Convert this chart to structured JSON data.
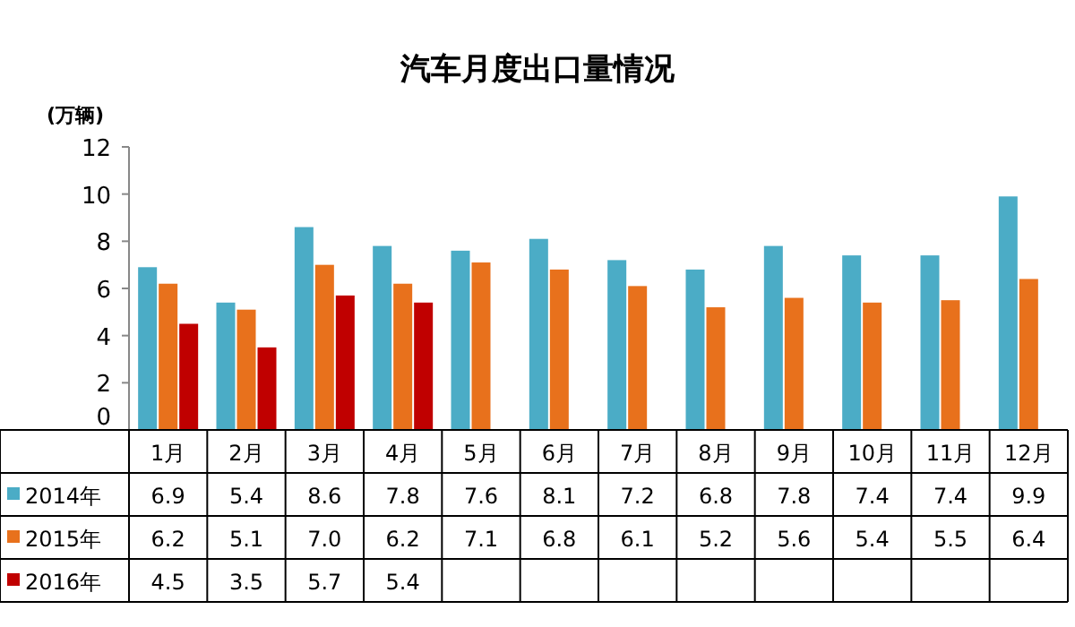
{
  "chart_data": {
    "type": "bar",
    "title": "汽车月度出口量情况",
    "ylabel": "(万辆)",
    "categories": [
      "1月",
      "2月",
      "3月",
      "4月",
      "5月",
      "6月",
      "7月",
      "8月",
      "9月",
      "10月",
      "11月",
      "12月"
    ],
    "series": [
      {
        "name": "2014年",
        "color": "#4bacc6",
        "values": [
          6.9,
          5.4,
          8.6,
          7.8,
          7.6,
          8.1,
          7.2,
          6.8,
          7.8,
          7.4,
          7.4,
          9.9
        ],
        "value_labels": [
          "6.9",
          "5.4",
          "8.6",
          "7.8",
          "7.6",
          "8.1",
          "7.2",
          "6.8",
          "7.8",
          "7.4",
          "7.4",
          "9.9"
        ]
      },
      {
        "name": "2015年",
        "color": "#e8711c",
        "values": [
          6.2,
          5.1,
          7.0,
          6.2,
          7.1,
          6.8,
          6.1,
          5.2,
          5.6,
          5.4,
          5.5,
          6.4
        ],
        "value_labels": [
          "6.2",
          "5.1",
          "7.0",
          "6.2",
          "7.1",
          "6.8",
          "6.1",
          "5.2",
          "5.6",
          "5.4",
          "5.5",
          "6.4"
        ]
      },
      {
        "name": "2016年",
        "color": "#c00000",
        "values": [
          4.5,
          3.5,
          5.7,
          5.4,
          null,
          null,
          null,
          null,
          null,
          null,
          null,
          null
        ],
        "value_labels": [
          "4.5",
          "3.5",
          "5.7",
          "5.4",
          null,
          null,
          null,
          null,
          null,
          null,
          null,
          null
        ]
      }
    ],
    "ylim": [
      0,
      12
    ],
    "yticks": [
      0,
      2,
      4,
      6,
      8,
      10,
      12
    ],
    "legend": "bottom"
  }
}
